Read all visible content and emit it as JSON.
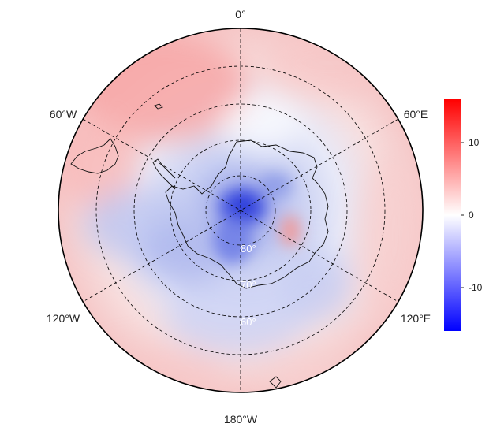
{
  "map": {
    "projection": "south-polar-stereographic",
    "longitude_labels": {
      "top": "0°",
      "upper_left": "60°W",
      "upper_right": "60°E",
      "lower_left": "120°W",
      "lower_right": "120°E",
      "bottom": "180°W"
    },
    "latitude_labels": [
      "60°",
      "70°",
      "80°"
    ]
  },
  "colorbar": {
    "ticks": [
      "10",
      "0",
      "-10"
    ],
    "min": -16,
    "max": 16,
    "colors": {
      "low": "#0000ff",
      "mid": "#ffffff",
      "high": "#ff0000"
    }
  }
}
